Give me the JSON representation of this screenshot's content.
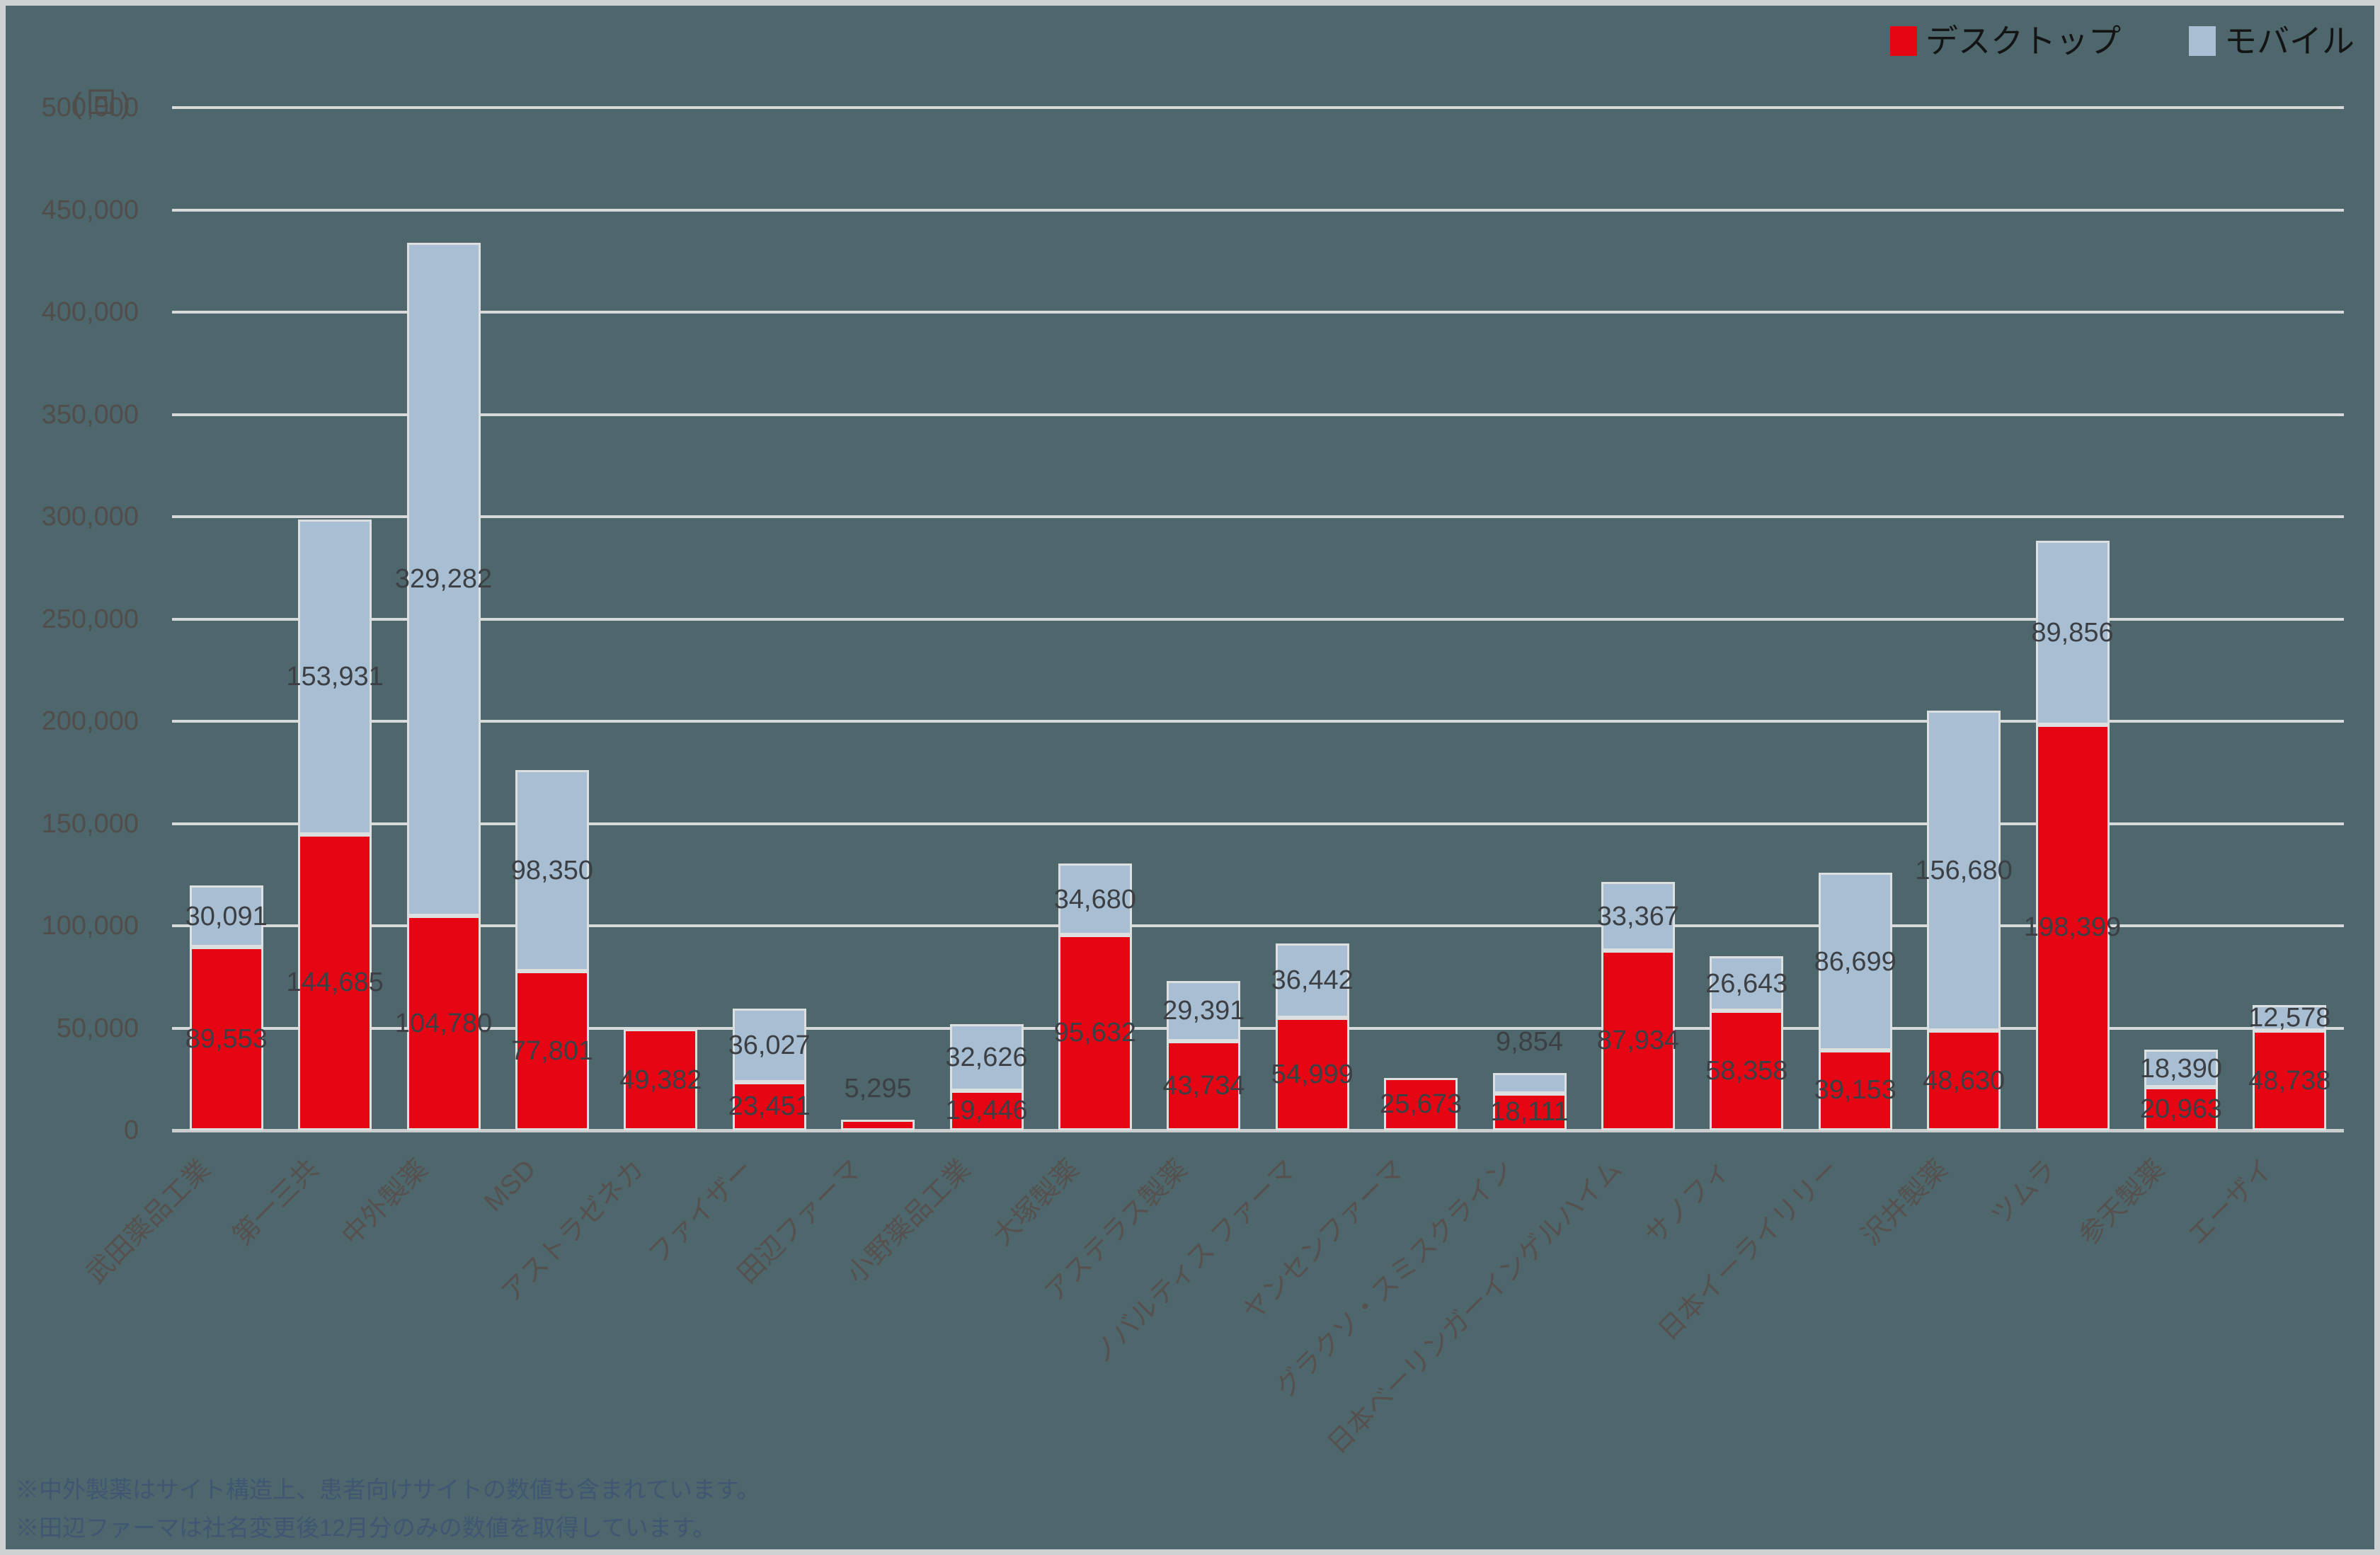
{
  "unit_label": "(回)",
  "chart_data": {
    "type": "bar",
    "stacked": true,
    "title": "",
    "ylabel": "(回)",
    "xlabel": "",
    "ylim": [
      0,
      500000
    ],
    "ytick_step": 50000,
    "ytick_labels": [
      "0",
      "50,000",
      "100,000",
      "150,000",
      "200,000",
      "250,000",
      "300,000",
      "350,000",
      "400,000",
      "450,000",
      "500,000"
    ],
    "grid": true,
    "legend_position": "top-right",
    "categories": [
      "武田薬品工業",
      "第一三共",
      "中外製薬",
      "MSD",
      "アストラゼネカ",
      "ファイザー",
      "田辺ファーマ",
      "小野薬品工業",
      "大塚製薬",
      "アステラス製薬",
      "ノバルティス ファーマ",
      "ヤンセンファーマ",
      "グラクソ・スミスクライン",
      "日本ベーリンガーインゲルハイム",
      "サノフィ",
      "日本イーライリリー",
      "沢井製薬",
      "ツムラ",
      "参天製薬",
      "エーザイ"
    ],
    "series": [
      {
        "name": "デスクトップ",
        "color": "#e60613",
        "values": [
          89553,
          144685,
          104780,
          77801,
          49382,
          23451,
          5295,
          19446,
          95632,
          43734,
          54999,
          25673,
          18111,
          87934,
          58358,
          39153,
          48630,
          198399,
          20963,
          48738
        ],
        "labels": [
          "89,553",
          "144,685",
          "104,780",
          "77,801",
          "49,382",
          "23,451",
          "5,295",
          "19,446",
          "95,632",
          "43,734",
          "54,999",
          "25,673",
          "18,111",
          "87,934",
          "58,358",
          "39,153",
          "48,630",
          "198,399",
          "20,963",
          "48,738"
        ]
      },
      {
        "name": "モバイル",
        "color": "#a8bed2",
        "values": [
          30091,
          153931,
          329282,
          98350,
          null,
          36027,
          null,
          32626,
          34680,
          29391,
          36442,
          null,
          9854,
          33367,
          26643,
          86699,
          156680,
          89856,
          18390,
          12578
        ],
        "labels": [
          "30,091",
          "153,931",
          "329,282",
          "98,350",
          null,
          "36,027",
          null,
          "32,626",
          "34,680",
          "29,391",
          "36,442",
          null,
          "9,854",
          "33,367",
          "26,643",
          "86,699",
          "156,680",
          "89,856",
          "18,390",
          "12,578"
        ]
      }
    ]
  },
  "footnotes": [
    "※中外製薬はサイト構造上、患者向けサイトの数値も含まれています。",
    "※田辺ファーマは社名変更後12月分のみの数値を取得しています。"
  ]
}
